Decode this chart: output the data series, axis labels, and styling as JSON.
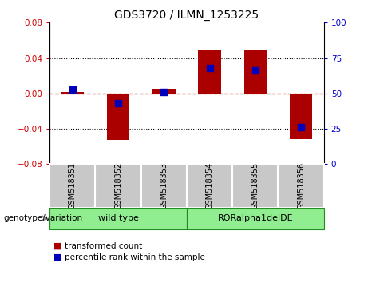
{
  "title": "GDS3720 / ILMN_1253225",
  "samples": [
    "GSM518351",
    "GSM518352",
    "GSM518353",
    "GSM518354",
    "GSM518355",
    "GSM518356"
  ],
  "red_values": [
    0.002,
    -0.053,
    0.005,
    0.05,
    0.05,
    -0.052
  ],
  "blue_percentiles": [
    53,
    43,
    51,
    68,
    66.5,
    26
  ],
  "ylim_left": [
    -0.08,
    0.08
  ],
  "ylim_right": [
    0,
    100
  ],
  "yticks_left": [
    -0.08,
    -0.04,
    0,
    0.04,
    0.08
  ],
  "yticks_right": [
    0,
    25,
    50,
    75,
    100
  ],
  "dotted_lines": [
    -0.04,
    0.04
  ],
  "group_labels": [
    "wild type",
    "RORalpha1delDE"
  ],
  "group_ranges": [
    [
      0,
      2
    ],
    [
      3,
      5
    ]
  ],
  "group_label_text": "genotype/variation",
  "legend_red": "transformed count",
  "legend_blue": "percentile rank within the sample",
  "bar_color": "#AA0000",
  "dot_color": "#0000BB",
  "bar_width": 0.5,
  "dot_size": 28,
  "left_tick_color": "#CC0000",
  "right_tick_color": "#0000CC",
  "sample_box_color": "#C8C8C8",
  "group_box_color": "#90EE90",
  "group_box_edge": "#228B22"
}
